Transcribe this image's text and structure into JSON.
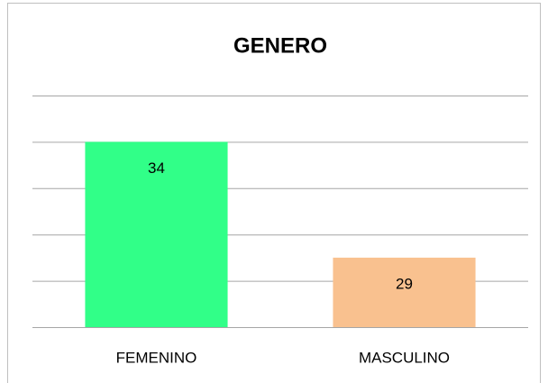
{
  "chart_data": {
    "type": "bar",
    "title": "GENERO",
    "categories": [
      "FEMENINO",
      "MASCULINO"
    ],
    "values": [
      34,
      29
    ],
    "colors": [
      "#31ff88",
      "#f9c18f"
    ],
    "ylim": [
      26,
      36
    ],
    "yticks": [
      26,
      28,
      30,
      32,
      34,
      36
    ],
    "grid": true
  }
}
